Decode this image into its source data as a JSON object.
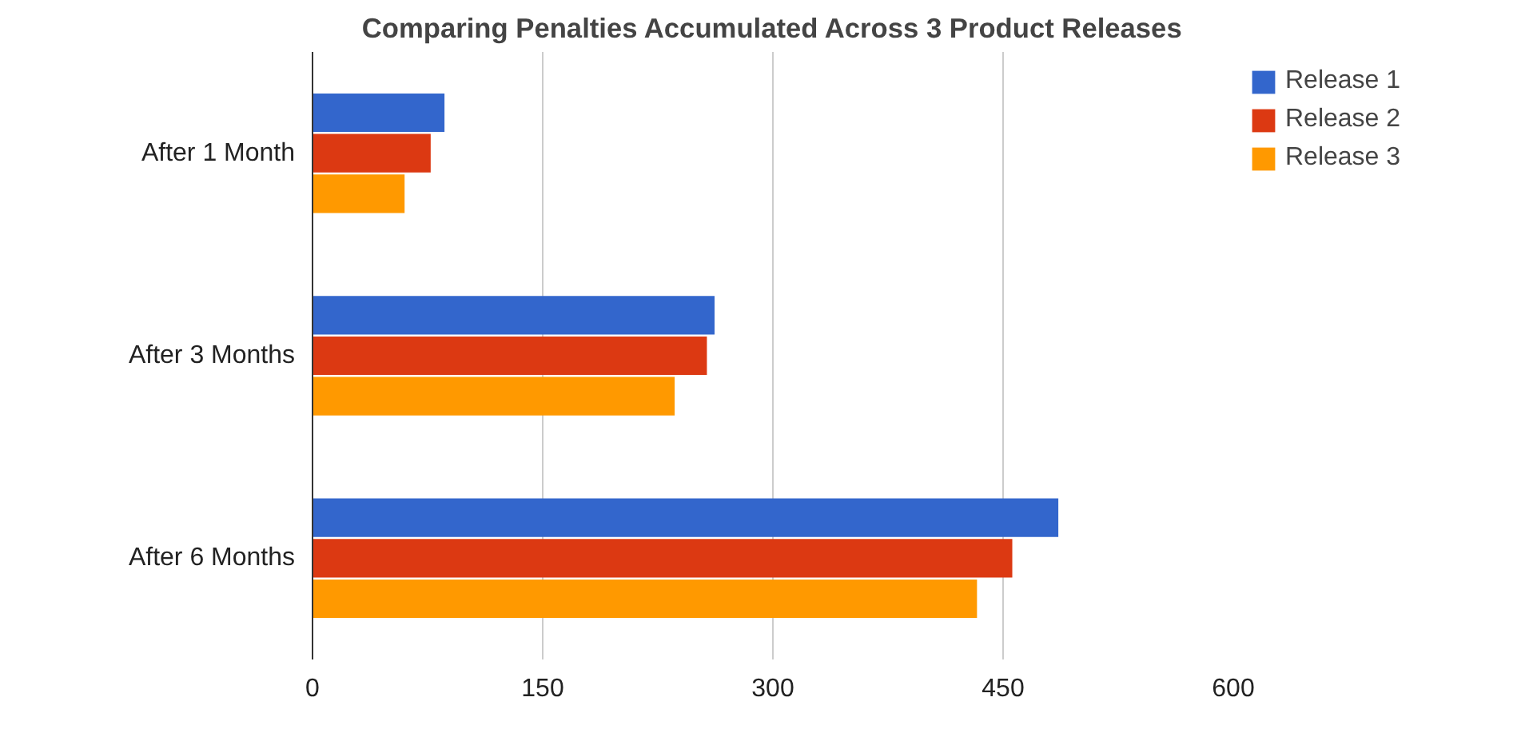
{
  "chart_data": {
    "type": "bar",
    "orientation": "horizontal",
    "title": "Comparing Penalties Accumulated Across 3 Product Releases",
    "categories": [
      "After 1 Month",
      "After 3 Months",
      "After 6 Months"
    ],
    "series": [
      {
        "name": "Release 1",
        "color": "#3366cc",
        "values": [
          86,
          262,
          486
        ]
      },
      {
        "name": "Release 2",
        "color": "#dc3912",
        "values": [
          77,
          257,
          456
        ]
      },
      {
        "name": "Release 3",
        "color": "#ff9900",
        "values": [
          60,
          236,
          433
        ]
      }
    ],
    "xlim": [
      0,
      600
    ],
    "xticks": [
      0,
      150,
      300,
      450,
      600
    ],
    "grid": "x",
    "legend": "top right"
  }
}
